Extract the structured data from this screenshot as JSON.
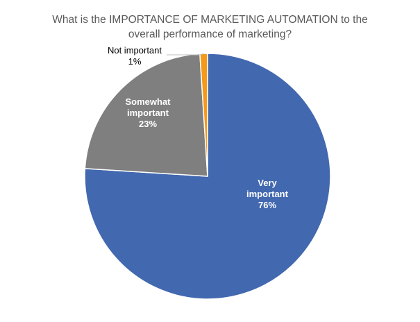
{
  "chart_data": {
    "type": "pie",
    "title_lines": [
      "What is the IMPORTANCE OF MARKETING AUTOMATION to the",
      "overall performance of marketing?"
    ],
    "slices": [
      {
        "label_lines": [
          "Very",
          "important"
        ],
        "value": 76,
        "value_label": "76%",
        "color": "#4268B0",
        "label_color": "#ffffff",
        "label_position": "inside"
      },
      {
        "label_lines": [
          "Somewhat",
          "important"
        ],
        "value": 23,
        "value_label": "23%",
        "color": "#7F7F7F",
        "label_color": "#ffffff",
        "label_position": "inside"
      },
      {
        "label_lines": [
          "Not important"
        ],
        "value": 1,
        "value_label": "1%",
        "color": "#F39A1A",
        "label_color": "#000000",
        "label_position": "outside-leader"
      }
    ],
    "start_angle_deg": 0,
    "direction": "clockwise",
    "slice_border_color": "#ffffff",
    "legend": "none"
  }
}
